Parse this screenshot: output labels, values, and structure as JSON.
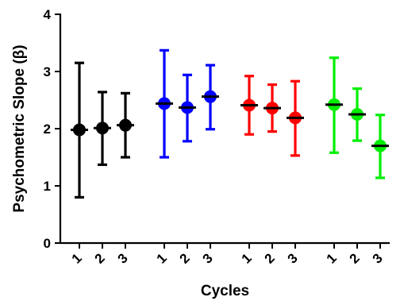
{
  "chart_data": {
    "type": "scatter",
    "subtype": "error-bar",
    "xlabel": "Cycles",
    "ylabel": "Psychometric Slope (β)",
    "ylim": [
      0,
      4
    ],
    "yticks": [
      "0",
      "1",
      "2",
      "3",
      "4"
    ],
    "legend": "none",
    "grid": false,
    "categories": [
      "1",
      "2",
      "3",
      "1",
      "2",
      "3",
      "1",
      "2",
      "3",
      "1",
      "2",
      "3"
    ],
    "series": [
      {
        "color": "#000000",
        "mean": [
          1.98,
          2.01,
          2.06
        ],
        "low": [
          0.8,
          1.37,
          1.5
        ],
        "high": [
          3.15,
          2.64,
          2.62
        ]
      },
      {
        "color": "#0000ff",
        "mean": [
          2.44,
          2.37,
          2.56
        ],
        "low": [
          1.5,
          1.78,
          1.99
        ],
        "high": [
          3.37,
          2.94,
          3.11
        ]
      },
      {
        "color": "#ff0000",
        "mean": [
          2.41,
          2.36,
          2.19
        ],
        "low": [
          1.9,
          1.95,
          1.53
        ],
        "high": [
          2.92,
          2.77,
          2.83
        ]
      },
      {
        "color": "#00ee00",
        "mean": [
          2.42,
          2.25,
          1.7
        ],
        "low": [
          1.58,
          1.79,
          1.14
        ],
        "high": [
          3.24,
          2.7,
          2.24
        ]
      }
    ]
  }
}
